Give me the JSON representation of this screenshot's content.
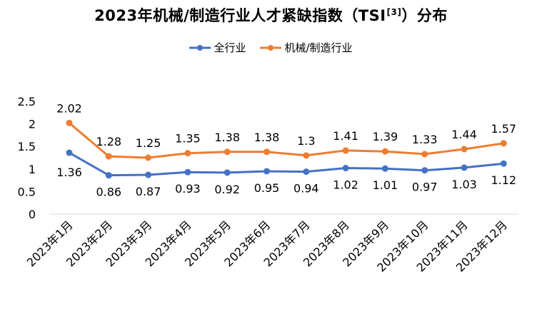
{
  "chart_data": {
    "type": "line",
    "title": "2023年机械/制造行业人才紧缺指数（TSI",
    "title_superscript": "[3]",
    "title_suffix": "）分布",
    "categories": [
      "2023年1月",
      "2023年2月",
      "2023年3月",
      "2023年4月",
      "2023年5月",
      "2023年6月",
      "2023年7月",
      "2023年8月",
      "2023年9月",
      "2023年10月",
      "2023年11月",
      "2023年12月"
    ],
    "series": [
      {
        "name": "全行业",
        "color": "#4472C4",
        "values": [
          1.36,
          0.86,
          0.87,
          0.93,
          0.92,
          0.95,
          0.94,
          1.02,
          1.01,
          0.97,
          1.03,
          1.12
        ],
        "labels": [
          "1.36",
          "0.86",
          "0.87",
          "0.93",
          "0.92",
          "0.95",
          "0.94",
          "1.02",
          "1.01",
          "0.97",
          "1.03",
          "1.12"
        ],
        "label_position": "below"
      },
      {
        "name": "机械/制造行业",
        "color": "#ED7D31",
        "values": [
          2.02,
          1.28,
          1.25,
          1.35,
          1.38,
          1.38,
          1.3,
          1.41,
          1.39,
          1.33,
          1.44,
          1.57
        ],
        "labels": [
          "2.02",
          "1.28",
          "1.25",
          "1.35",
          "1.38",
          "1.38",
          "1.3",
          "1.41",
          "1.39",
          "1.33",
          "1.44",
          "1.57"
        ],
        "label_position": "above"
      }
    ],
    "y_ticks": [
      "0",
      "0.5",
      "1",
      "1.5",
      "2",
      "2.5"
    ],
    "ylim": [
      0,
      2.5
    ],
    "xlabel": "",
    "ylabel": "",
    "grid": false,
    "legend_position": "top-center"
  }
}
